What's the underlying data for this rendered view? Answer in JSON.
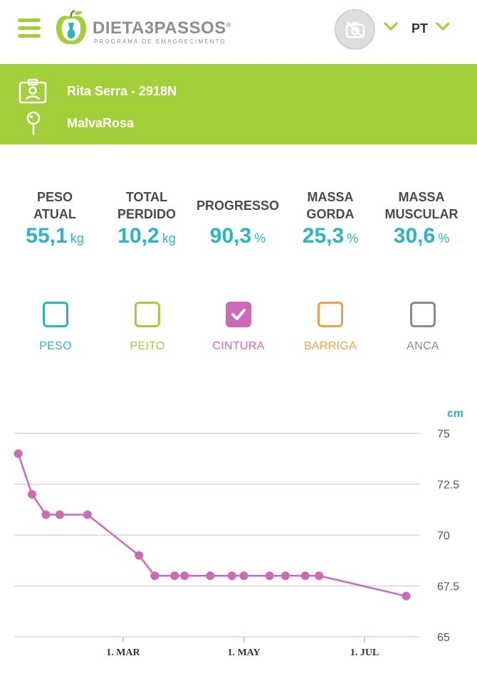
{
  "header": {
    "logo_text": "DIETA3PASSOS",
    "logo_registered": "®",
    "logo_subtitle": "PROGRAMA DE EMAGRECIMENTO",
    "language": "PT",
    "brand_color": "#a3cf3a"
  },
  "profile": {
    "name": "Rita Serra - 2918N",
    "location": "MalvaRosa"
  },
  "stats": [
    {
      "label1": "PESO",
      "label2": "ATUAL",
      "value": "55,1",
      "unit": "kg"
    },
    {
      "label1": "TOTAL",
      "label2": "PERDIDO",
      "value": "10,2",
      "unit": "kg"
    },
    {
      "label1": "PROGRESSO",
      "label2": "",
      "value": "90,3",
      "unit": "%"
    },
    {
      "label1": "MASSA",
      "label2": "GORDA",
      "value": "25,3",
      "unit": "%"
    },
    {
      "label1": "MASSA",
      "label2": "MUSCULAR",
      "value": "30,6",
      "unit": "%"
    }
  ],
  "toggles": [
    {
      "label": "PESO",
      "color": "#27b6c4",
      "checked": false
    },
    {
      "label": "PEITO",
      "color": "#a3cf3a",
      "checked": false
    },
    {
      "label": "CINTURA",
      "color": "#cc6ab7",
      "checked": true
    },
    {
      "label": "BARRIGA",
      "color": "#f0a04b",
      "checked": false
    },
    {
      "label": "ANCA",
      "color": "#8a8a8a",
      "checked": false
    }
  ],
  "chart_data": {
    "type": "line",
    "ylabel": "cm",
    "ylim": [
      65,
      75
    ],
    "yticks": [
      "75",
      "72.5",
      "70",
      "67.5",
      "65"
    ],
    "xticks": [
      {
        "label": "1. MAR",
        "date": "2019-03-01"
      },
      {
        "label": "1. MAY",
        "date": "2019-05-01"
      },
      {
        "label": "1. JUL",
        "date": "2019-07-01"
      }
    ],
    "xlim": [
      "2019-01-05",
      "2019-07-29"
    ],
    "grid": true,
    "series": [
      {
        "color": "#cc6ab7",
        "points": [
          {
            "x": "2019-01-07",
            "y": 74
          },
          {
            "x": "2019-01-14",
            "y": 72
          },
          {
            "x": "2019-01-21",
            "y": 71
          },
          {
            "x": "2019-01-28",
            "y": 71
          },
          {
            "x": "2019-02-11",
            "y": 71
          },
          {
            "x": "2019-03-09",
            "y": 69
          },
          {
            "x": "2019-03-17",
            "y": 68
          },
          {
            "x": "2019-03-27",
            "y": 68
          },
          {
            "x": "2019-04-01",
            "y": 68
          },
          {
            "x": "2019-04-14",
            "y": 68
          },
          {
            "x": "2019-04-25",
            "y": 68
          },
          {
            "x": "2019-05-01",
            "y": 68
          },
          {
            "x": "2019-05-14",
            "y": 68
          },
          {
            "x": "2019-05-22",
            "y": 68
          },
          {
            "x": "2019-06-01",
            "y": 68
          },
          {
            "x": "2019-06-08",
            "y": 68
          },
          {
            "x": "2019-07-22",
            "y": 67
          }
        ]
      }
    ]
  }
}
